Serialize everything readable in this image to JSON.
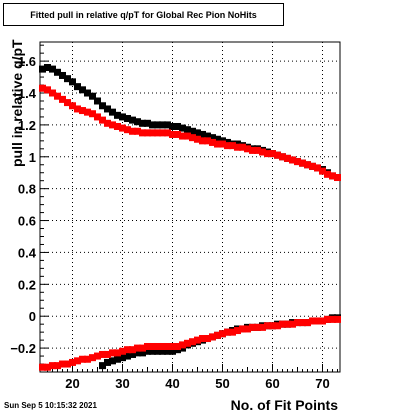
{
  "canvas": {
    "background": "#ffffff"
  },
  "timestamp": "Sun Sep  5 10:15:32 2021",
  "chart_data": {
    "type": "scatter",
    "title": "Fitted pull in relative q/pT for Global Rec Pion NoHits",
    "xlabel": "No. of Fit Points",
    "ylabel": "pull in relative q/pT",
    "xlim": [
      13.5,
      73.5
    ],
    "ylim": [
      -0.35,
      1.72
    ],
    "x_ticks": [
      20,
      30,
      40,
      50,
      60,
      70
    ],
    "y_ticks": [
      -0.2,
      0,
      0.2,
      0.4,
      0.6,
      0.8,
      1,
      1.2,
      1.4,
      1.6
    ],
    "y_tick_labels": [
      "−0.2",
      "0",
      "0.2",
      "0.4",
      "0.6",
      "0.8",
      "1",
      "1.2",
      "1.4",
      "1.6"
    ],
    "grid": true,
    "legend": "none",
    "series": [
      {
        "color": "#000000",
        "x": [
          14,
          15,
          16,
          17,
          18,
          19,
          20,
          21,
          22,
          23,
          24,
          25,
          26,
          27,
          28,
          29,
          30,
          31,
          32,
          33,
          34,
          35,
          36,
          37,
          38,
          39,
          40,
          41,
          42,
          43,
          44,
          45,
          46,
          47,
          48,
          49,
          50,
          51,
          52,
          53,
          54,
          55,
          56,
          57,
          58,
          59,
          60,
          61,
          62,
          63,
          64,
          65,
          66,
          67,
          68,
          69,
          70,
          71,
          72,
          73
        ],
        "y": [
          1.55,
          1.56,
          1.55,
          1.53,
          1.51,
          1.49,
          1.47,
          1.44,
          1.42,
          1.4,
          1.38,
          1.35,
          1.32,
          1.3,
          1.28,
          1.26,
          1.25,
          1.24,
          1.23,
          1.22,
          1.21,
          1.21,
          1.2,
          1.2,
          1.2,
          1.2,
          1.19,
          1.19,
          1.18,
          1.17,
          1.16,
          1.15,
          1.14,
          1.13,
          1.12,
          1.11,
          1.1,
          1.09,
          1.08,
          1.08,
          1.07,
          1.06,
          1.05,
          1.05,
          1.04,
          1.03,
          1.02,
          1.01,
          1.0,
          0.99,
          0.98,
          0.97,
          0.96,
          0.95,
          0.94,
          0.93,
          0.92,
          0.9,
          0.88,
          0.87
        ]
      },
      {
        "color": "#000000",
        "x": [
          24,
          25,
          26,
          27,
          28,
          29,
          30,
          31,
          32,
          33,
          34,
          35,
          36,
          37,
          38,
          39,
          40,
          41,
          42,
          43,
          44,
          45,
          46,
          47,
          48,
          49,
          50,
          51,
          52,
          53,
          54,
          55,
          56,
          57,
          58,
          59,
          60,
          61,
          62,
          63,
          64,
          65,
          66,
          67,
          68,
          69,
          70,
          71,
          72,
          73
        ],
        "y": [
          -0.36,
          -0.33,
          -0.31,
          -0.29,
          -0.28,
          -0.27,
          -0.26,
          -0.25,
          -0.24,
          -0.23,
          -0.23,
          -0.22,
          -0.22,
          -0.22,
          -0.22,
          -0.22,
          -0.22,
          -0.21,
          -0.2,
          -0.18,
          -0.17,
          -0.16,
          -0.15,
          -0.14,
          -0.13,
          -0.12,
          -0.11,
          -0.1,
          -0.09,
          -0.08,
          -0.08,
          -0.07,
          -0.07,
          -0.07,
          -0.06,
          -0.06,
          -0.06,
          -0.05,
          -0.05,
          -0.05,
          -0.04,
          -0.04,
          -0.04,
          -0.04,
          -0.03,
          -0.03,
          -0.03,
          -0.02,
          -0.01,
          -0.01
        ]
      },
      {
        "color": "#ff0000",
        "x": [
          14,
          15,
          16,
          17,
          18,
          19,
          20,
          21,
          22,
          23,
          24,
          25,
          26,
          27,
          28,
          29,
          30,
          31,
          32,
          33,
          34,
          35,
          36,
          37,
          38,
          39,
          40,
          41,
          42,
          43,
          44,
          45,
          46,
          47,
          48,
          49,
          50,
          51,
          52,
          53,
          54,
          55,
          56,
          57,
          58,
          59,
          60,
          61,
          62,
          63,
          64,
          65,
          66,
          67,
          68,
          69,
          70,
          71,
          72,
          73
        ],
        "y": [
          1.43,
          1.42,
          1.4,
          1.38,
          1.36,
          1.34,
          1.32,
          1.3,
          1.29,
          1.28,
          1.27,
          1.25,
          1.23,
          1.21,
          1.2,
          1.19,
          1.18,
          1.17,
          1.16,
          1.16,
          1.15,
          1.15,
          1.15,
          1.15,
          1.15,
          1.15,
          1.14,
          1.14,
          1.13,
          1.13,
          1.12,
          1.11,
          1.1,
          1.1,
          1.09,
          1.08,
          1.08,
          1.07,
          1.07,
          1.06,
          1.06,
          1.05,
          1.04,
          1.04,
          1.03,
          1.02,
          1.02,
          1.01,
          1.0,
          0.99,
          0.98,
          0.97,
          0.96,
          0.95,
          0.94,
          0.93,
          0.91,
          0.89,
          0.88,
          0.87
        ]
      },
      {
        "color": "#ff0000",
        "x": [
          14,
          15,
          16,
          17,
          18,
          19,
          20,
          21,
          22,
          23,
          24,
          25,
          26,
          27,
          28,
          29,
          30,
          31,
          32,
          33,
          34,
          35,
          36,
          37,
          38,
          39,
          40,
          41,
          42,
          43,
          44,
          45,
          46,
          47,
          48,
          49,
          50,
          51,
          52,
          53,
          54,
          55,
          56,
          57,
          58,
          59,
          60,
          61,
          62,
          63,
          64,
          65,
          66,
          67,
          68,
          69,
          70,
          71,
          72,
          73
        ],
        "y": [
          -0.32,
          -0.32,
          -0.31,
          -0.31,
          -0.3,
          -0.3,
          -0.29,
          -0.28,
          -0.27,
          -0.27,
          -0.26,
          -0.25,
          -0.24,
          -0.24,
          -0.23,
          -0.23,
          -0.22,
          -0.21,
          -0.21,
          -0.2,
          -0.2,
          -0.19,
          -0.19,
          -0.19,
          -0.19,
          -0.19,
          -0.19,
          -0.19,
          -0.18,
          -0.17,
          -0.16,
          -0.15,
          -0.14,
          -0.14,
          -0.13,
          -0.12,
          -0.11,
          -0.1,
          -0.1,
          -0.09,
          -0.08,
          -0.08,
          -0.07,
          -0.07,
          -0.07,
          -0.06,
          -0.06,
          -0.06,
          -0.05,
          -0.05,
          -0.05,
          -0.04,
          -0.04,
          -0.04,
          -0.03,
          -0.03,
          -0.03,
          -0.02,
          -0.02,
          -0.02
        ]
      }
    ]
  }
}
